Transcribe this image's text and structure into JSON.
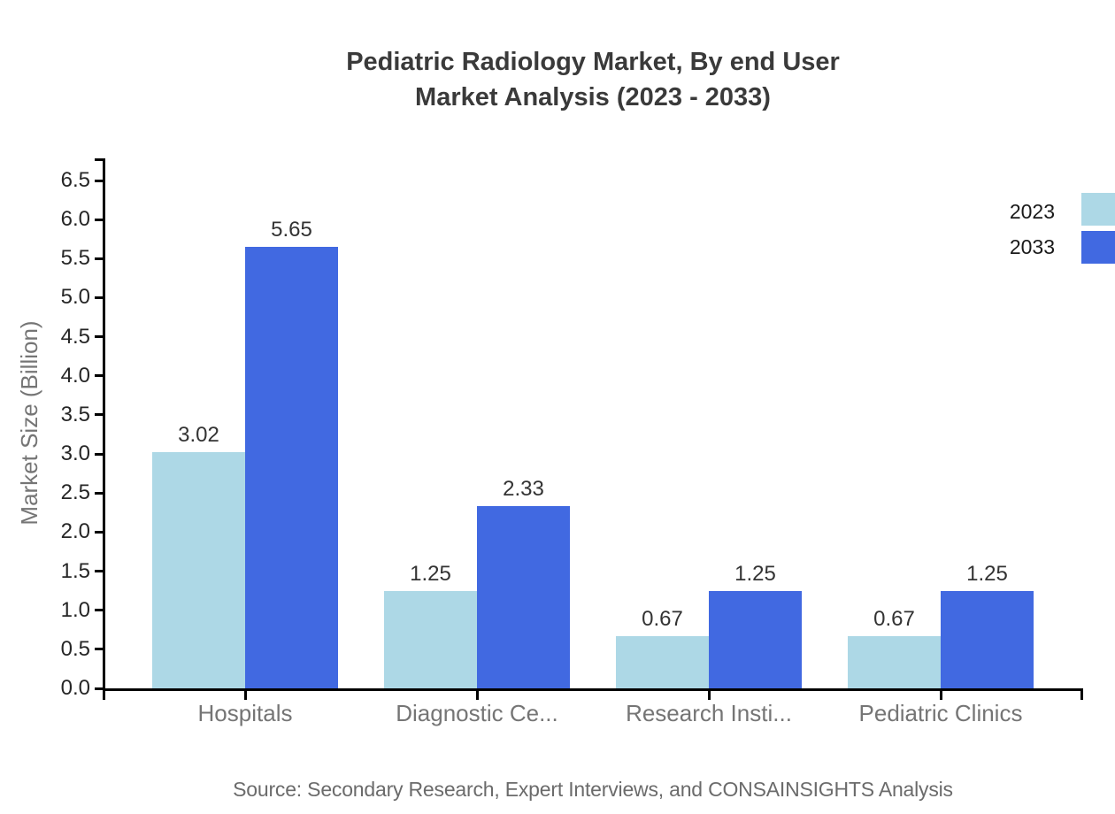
{
  "title": {
    "line1": "Pediatric Radiology Market, By end User",
    "line2": "Market Analysis (2023 - 2033)"
  },
  "y_axis": {
    "title": "Market Size (Billion)"
  },
  "legend": {
    "items": [
      {
        "label": "2023",
        "color": "#ADD8E6"
      },
      {
        "label": "2033",
        "color": "#4169E1"
      }
    ]
  },
  "footer": {
    "source": "Source: Secondary Research, Expert Interviews, and CONSAINSIGHTS Analysis"
  },
  "colors": {
    "series_2023": "#ADD8E6",
    "series_2033": "#4169E1",
    "axis": "#000000",
    "title_text": "#3a3a3a",
    "tick_text": "#262626",
    "value_label_text": "#333333",
    "category_text": "#757575",
    "source_text": "#6b6b6b"
  },
  "chart_data": {
    "type": "bar",
    "title": "Pediatric Radiology Market, By end User Market Analysis (2023 - 2033)",
    "categories": [
      "Hospitals",
      "Diagnostic Ce...",
      "Research Insti...",
      "Pediatric Clinics"
    ],
    "series": [
      {
        "name": "2023",
        "color": "#ADD8E6",
        "values": [
          3.02,
          1.25,
          0.67,
          0.67
        ]
      },
      {
        "name": "2033",
        "color": "#4169E1",
        "values": [
          5.65,
          2.33,
          1.25,
          1.25
        ]
      }
    ],
    "xlabel": "",
    "ylabel": "Market Size (Billion)",
    "ylim": [
      0,
      6.5
    ],
    "ytick_step": 0.5,
    "grid": false,
    "legend_position": "top-right",
    "bar_value_labels": true,
    "value_label_format": "2-decimals"
  }
}
